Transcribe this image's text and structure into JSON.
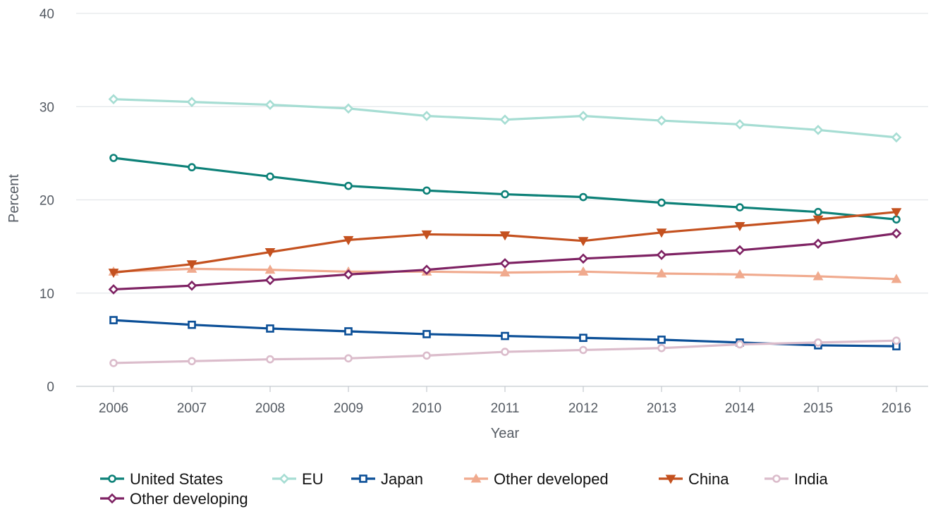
{
  "chart_data": {
    "type": "line",
    "title": "",
    "xlabel": "Year",
    "ylabel": "Percent",
    "x": [
      "2006",
      "2007",
      "2008",
      "2009",
      "2010",
      "2011",
      "2012",
      "2013",
      "2014",
      "2015",
      "2016"
    ],
    "ylim": [
      0,
      40
    ],
    "yticks": [
      "0",
      "10",
      "20",
      "30",
      "40"
    ],
    "grid": true,
    "legend_position": "bottom-left",
    "series": [
      {
        "name": "United States",
        "color": "#0d8178",
        "marker": "circle",
        "values": [
          24.5,
          23.5,
          22.5,
          21.5,
          21.0,
          20.6,
          20.3,
          19.7,
          19.2,
          18.7,
          17.9
        ]
      },
      {
        "name": "EU",
        "color": "#a6ddd3",
        "marker": "diamond",
        "values": [
          30.8,
          30.5,
          30.2,
          29.8,
          29.0,
          28.6,
          29.0,
          28.5,
          28.1,
          27.5,
          26.7
        ]
      },
      {
        "name": "Japan",
        "color": "#0b4f97",
        "marker": "square",
        "values": [
          7.1,
          6.6,
          6.2,
          5.9,
          5.6,
          5.4,
          5.2,
          5.0,
          4.7,
          4.4,
          4.3
        ]
      },
      {
        "name": "Other developed",
        "color": "#f0aa8e",
        "marker": "triangle-up",
        "values": [
          12.3,
          12.6,
          12.5,
          12.3,
          12.3,
          12.2,
          12.3,
          12.1,
          12.0,
          11.8,
          11.5
        ]
      },
      {
        "name": "China",
        "color": "#c4511f",
        "marker": "triangle-down",
        "values": [
          12.2,
          13.1,
          14.4,
          15.7,
          16.3,
          16.2,
          15.6,
          16.5,
          17.2,
          17.9,
          18.7
        ]
      },
      {
        "name": "India",
        "color": "#dbbccb",
        "marker": "circle",
        "values": [
          2.5,
          2.7,
          2.9,
          3.0,
          3.3,
          3.7,
          3.9,
          4.1,
          4.5,
          4.7,
          4.9
        ]
      },
      {
        "name": "Other developing",
        "color": "#7e2263",
        "marker": "diamond",
        "values": [
          10.4,
          10.8,
          11.4,
          12.0,
          12.5,
          13.2,
          13.7,
          14.1,
          14.6,
          15.3,
          16.4
        ]
      }
    ]
  }
}
